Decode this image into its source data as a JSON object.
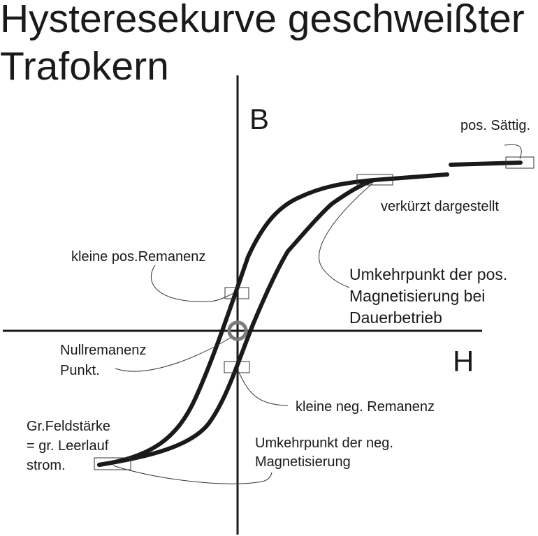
{
  "title": {
    "line1": "Hysteresekurve geschweißter",
    "line2": "Trafokern"
  },
  "axes": {
    "y_label": "B",
    "x_label": "H"
  },
  "annotations": {
    "pos_saturation": "pos. Sättig.",
    "shortened": "verkürzt dargestellt",
    "reversal_pos": [
      "Umkehrpunkt der pos.",
      "Magnetisierung bei",
      "Dauerbetrieb"
    ],
    "small_pos_remanence": "kleine pos.Remanenz",
    "zero_remanence": [
      "Nullremanenz",
      "Punkt."
    ],
    "small_neg_remanence": "kleine neg. Remanenz",
    "high_field": [
      "Gr.Feldstärke",
      "= gr. Leerlauf",
      "strom."
    ],
    "reversal_neg": [
      "Umkehrpunkt der neg.",
      "Magnetisierung"
    ]
  },
  "colors": {
    "ink": "#1a1a1a",
    "marker": "#7a7a7a"
  }
}
